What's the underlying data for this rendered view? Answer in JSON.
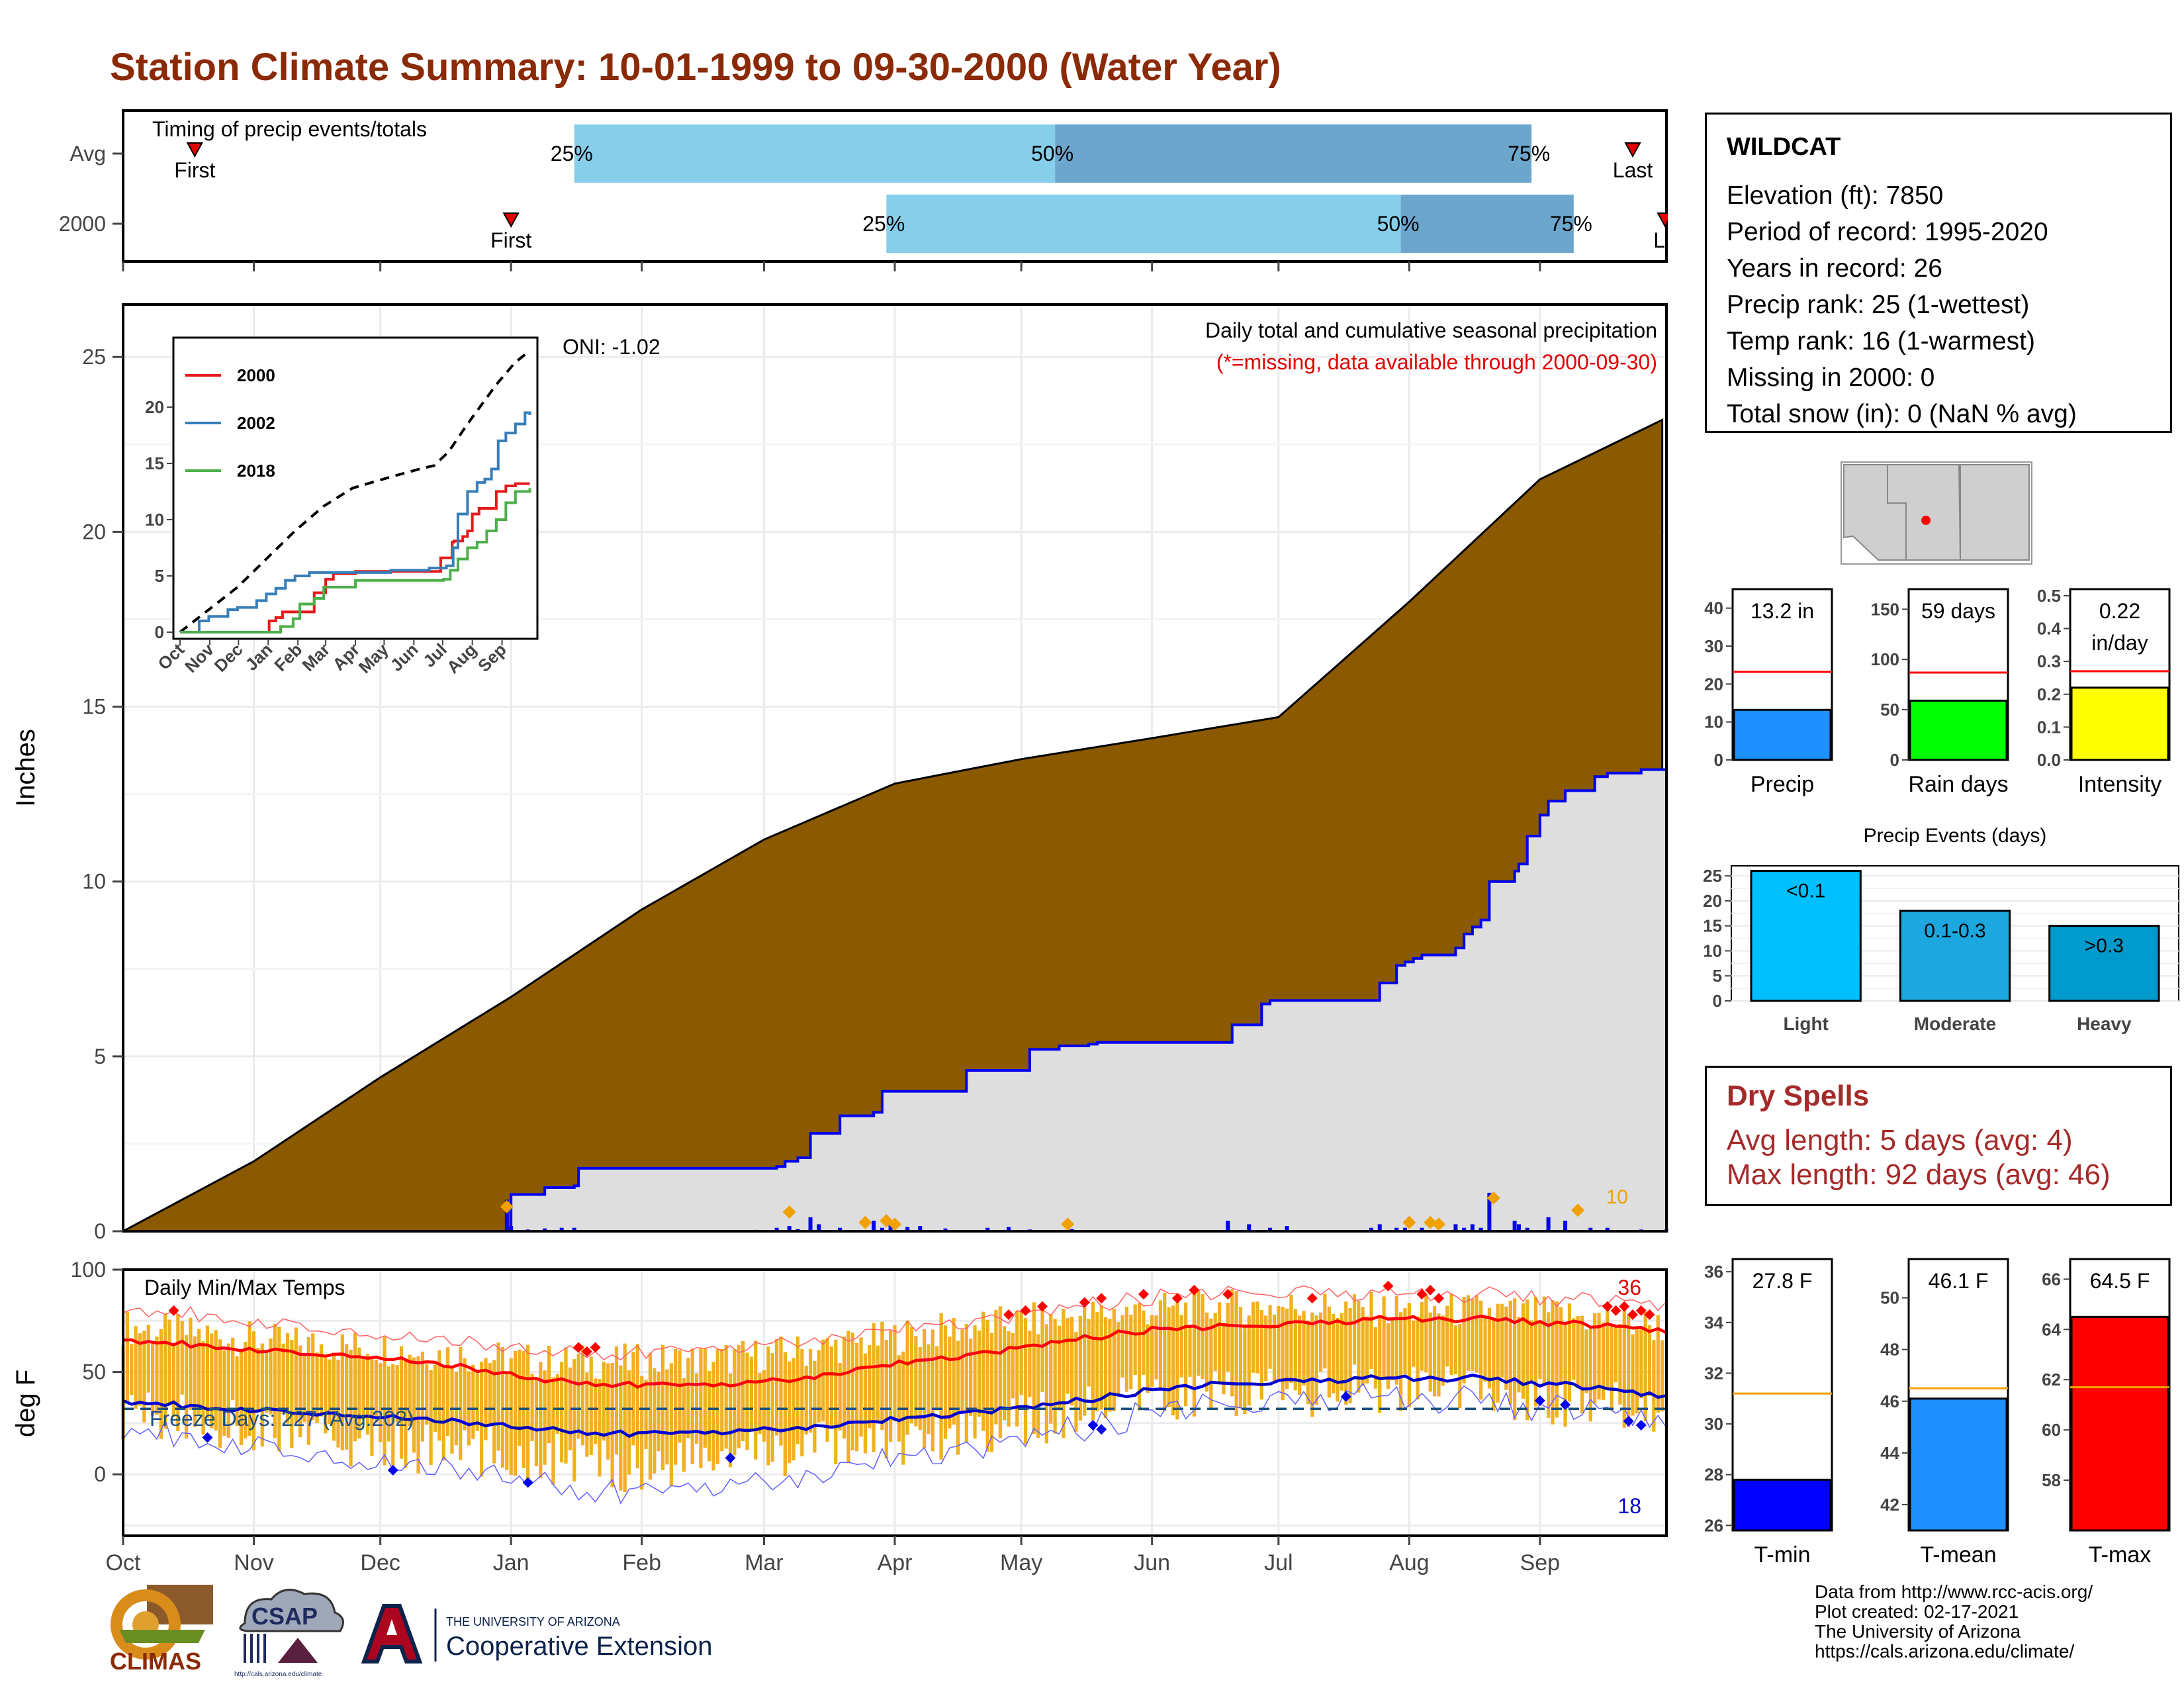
{
  "title": "Station Climate Summary: 10-01-1999 to 09-30-2000 (Water Year)",
  "colors": {
    "title": "#8B2A06",
    "accum": "#8B5A00",
    "current_fill": "#DEDEDE",
    "current_line": "#0000EE",
    "daily_bar": "#0000EE",
    "tmax": "#FF0000",
    "tmin": "#0000CC",
    "temp_bar": "#F0B020",
    "quartile_light": "#87CEEB",
    "quartile_dark": "#6CA6CD",
    "dry_spells": "#A52A2A"
  },
  "timing": {
    "label": "Timing of precip events/totals",
    "rows": [
      {
        "name": "Avg",
        "first_day": 17,
        "last_day": 358,
        "q25_day": 107,
        "q50_day": 221,
        "q75_day": 334,
        "q25_label": "25%",
        "q50_label": "50%",
        "q75_label": "75%",
        "first_label": "First",
        "last_label": "Last"
      },
      {
        "name": "2000",
        "first_day": 92,
        "last_day": 366,
        "q25_day": 181,
        "q50_day": 303,
        "q75_day": 344,
        "q25_label": "25%",
        "q50_label": "50%",
        "q75_label": "75%",
        "first_label": "First",
        "last_label": "La"
      }
    ]
  },
  "oni_label": "ONI: -1.02",
  "precip_header": "Daily total and cumulative seasonal precipitation",
  "precip_note": "(*=missing, data available through 2000-09-30)",
  "precip_corner_value": "10",
  "temp_header": "Daily Min/Max Temps",
  "freeze_label": "Freeze Days: 227 (Avg:202)",
  "temp_count_max": "36",
  "temp_count_min": "18",
  "month_labels": [
    "Oct",
    "Nov",
    "Dec",
    "Jan",
    "Feb",
    "Mar",
    "Apr",
    "May",
    "Jun",
    "Jul",
    "Aug",
    "Sep"
  ],
  "chart_data": [
    {
      "type": "area",
      "id": "cumulative-precip",
      "ylabel": "Inches",
      "ylim": [
        0,
        26.5
      ],
      "yticks": [
        0,
        5,
        10,
        15,
        20,
        25
      ],
      "x_unit": "day of water year",
      "avg_cumulative": {
        "x": [
          0,
          31,
          61,
          92,
          123,
          152,
          183,
          213,
          244,
          274,
          305,
          336,
          365
        ],
        "y": [
          0,
          2.0,
          4.4,
          6.7,
          9.2,
          11.2,
          12.8,
          13.5,
          14.1,
          14.7,
          18.0,
          21.5,
          23.2
        ]
      },
      "current_cumulative": {
        "x": [
          0,
          91,
          92,
          100,
          107,
          108,
          140,
          150,
          155,
          157,
          160,
          163,
          170,
          178,
          180,
          200,
          215,
          222,
          229,
          231,
          236,
          250,
          262,
          263,
          270,
          272,
          296,
          298,
          302,
          304,
          306,
          308,
          316,
          318,
          320,
          322,
          324,
          330,
          331,
          333,
          336,
          338,
          342,
          349,
          352,
          355,
          360,
          366
        ],
        "y": [
          0,
          0,
          1.05,
          1.25,
          1.3,
          1.8,
          1.8,
          1.8,
          1.85,
          2.0,
          2.1,
          2.8,
          3.3,
          3.4,
          4.0,
          4.6,
          5.2,
          5.3,
          5.35,
          5.4,
          5.4,
          5.4,
          5.4,
          5.9,
          6.5,
          6.6,
          6.6,
          7.1,
          7.6,
          7.7,
          7.8,
          7.9,
          8.1,
          8.5,
          8.7,
          8.9,
          10.0,
          10.3,
          10.5,
          11.3,
          11.9,
          12.3,
          12.6,
          13.0,
          13.1,
          13.1,
          13.2,
          13.2
        ]
      },
      "daily_bars": {
        "x": [
          91,
          92,
          96,
          100,
          104,
          107,
          150,
          155,
          158,
          160,
          163,
          165,
          170,
          178,
          180,
          182,
          186,
          189,
          195,
          205,
          210,
          215,
          225,
          262,
          267,
          272,
          276,
          296,
          298,
          302,
          304,
          308,
          316,
          318,
          320,
          322,
          324,
          330,
          331,
          333,
          338,
          342,
          348,
          352,
          360,
          366
        ],
        "y": [
          0.9,
          0.15,
          0.05,
          0.08,
          0.1,
          0.1,
          0.04,
          0.1,
          0.15,
          0.06,
          0.4,
          0.2,
          0.1,
          0.3,
          0.1,
          0.2,
          0.12,
          0.15,
          0.08,
          0.1,
          0.12,
          0.05,
          0.06,
          0.3,
          0.2,
          0.1,
          0.15,
          0.1,
          0.2,
          0.1,
          0.1,
          0.1,
          0.2,
          0.1,
          0.2,
          0.1,
          1.1,
          0.3,
          0.2,
          0.1,
          0.4,
          0.3,
          0.1,
          0.1,
          0.05,
          0.05
        ]
      },
      "highlight_markers": {
        "x": [
          91,
          158,
          176,
          181,
          183,
          224,
          305,
          310,
          312,
          325,
          345
        ],
        "y": [
          0.7,
          0.55,
          0.25,
          0.3,
          0.2,
          0.2,
          0.25,
          0.25,
          0.2,
          0.95,
          0.6
        ]
      }
    },
    {
      "type": "line",
      "id": "inset-cumulative",
      "series": [
        {
          "name": "2000",
          "x": [
            0,
            92,
            93,
            100,
            107,
            110,
            140,
            152,
            160,
            183,
            215,
            272,
            284,
            286,
            295,
            300,
            305,
            312,
            330,
            340,
            350,
            365
          ],
          "y": [
            0,
            0,
            1.0,
            1.3,
            1.8,
            1.8,
            3.5,
            4.7,
            5.2,
            5.4,
            5.4,
            6.6,
            8.0,
            8.1,
            8.5,
            9.0,
            10.5,
            11.0,
            12.5,
            13.0,
            13.2,
            13.2
          ]
        },
        {
          "name": "2002",
          "x": [
            0,
            20,
            30,
            50,
            60,
            80,
            90,
            100,
            110,
            120,
            135,
            155,
            183,
            220,
            260,
            278,
            285,
            290,
            300,
            310,
            318,
            325,
            332,
            340,
            350,
            360,
            365
          ],
          "y": [
            0,
            1.0,
            1.4,
            2.0,
            2.2,
            2.8,
            3.4,
            3.9,
            4.6,
            5.0,
            5.3,
            5.3,
            5.3,
            5.5,
            5.7,
            5.9,
            7.5,
            10.5,
            12.5,
            13.3,
            13.6,
            14.5,
            17.0,
            17.7,
            18.5,
            19.5,
            19.3
          ]
        },
        {
          "name": "2018",
          "x": [
            0,
            100,
            105,
            118,
            125,
            140,
            150,
            183,
            220,
            275,
            282,
            290,
            300,
            310,
            320,
            330,
            340,
            350,
            365
          ],
          "y": [
            0,
            0,
            0.5,
            1.2,
            2.5,
            3.0,
            4.0,
            4.6,
            4.6,
            4.7,
            5.5,
            6.5,
            7.5,
            8.0,
            9.0,
            10.0,
            11.5,
            12.5,
            12.8
          ]
        }
      ],
      "avg_dashed": {
        "x": [
          0,
          30,
          60,
          90,
          120,
          150,
          180,
          220,
          250,
          265,
          280,
          300,
          330,
          350,
          365
        ],
        "y": [
          0,
          2.0,
          4.0,
          6.5,
          9.0,
          11.2,
          12.8,
          13.8,
          14.5,
          14.8,
          16.0,
          18.5,
          22.0,
          24.0,
          25.0
        ]
      },
      "ylim": [
        0,
        25
      ],
      "yticks": [
        0,
        5,
        10,
        15,
        20
      ],
      "xticks": [
        "Oct",
        "Nov",
        "Dec",
        "Jan",
        "Feb",
        "Mar",
        "Apr",
        "May",
        "Jun",
        "Jul",
        "Aug",
        "Sep"
      ]
    },
    {
      "type": "line",
      "id": "daily-temps",
      "ylabel": "deg F",
      "ylim": [
        -30,
        100
      ],
      "yticks": [
        0,
        50,
        100
      ],
      "freeze_line": 32,
      "tmax_smooth": {
        "x": [
          0,
          20,
          40,
          60,
          80,
          100,
          120,
          140,
          160,
          180,
          200,
          220,
          240,
          260,
          280,
          300,
          320,
          340,
          366
        ],
        "y": [
          66,
          63,
          60,
          58,
          53,
          46,
          44,
          44,
          47,
          53,
          58,
          64,
          70,
          72,
          74,
          76,
          76,
          74,
          70
        ]
      },
      "tmin_smooth": {
        "x": [
          0,
          20,
          40,
          60,
          80,
          100,
          120,
          140,
          160,
          180,
          200,
          220,
          240,
          260,
          280,
          300,
          320,
          340,
          366
        ],
        "y": [
          36,
          33,
          31,
          29,
          26,
          22,
          20,
          21,
          23,
          26,
          30,
          34,
          40,
          44,
          46,
          47,
          47,
          44,
          38
        ]
      },
      "tmax_record": {
        "x": [
          0,
          20,
          40,
          60,
          80,
          100,
          120,
          140,
          160,
          180,
          200,
          220,
          240,
          260,
          280,
          300,
          320,
          340,
          366
        ],
        "y": [
          82,
          78,
          74,
          70,
          66,
          60,
          60,
          62,
          66,
          70,
          74,
          80,
          86,
          88,
          90,
          88,
          88,
          86,
          82
        ]
      },
      "tmin_record": {
        "x": [
          0,
          20,
          40,
          60,
          80,
          100,
          120,
          140,
          160,
          180,
          200,
          220,
          240,
          260,
          280,
          300,
          320,
          340,
          366
        ],
        "y": [
          24,
          18,
          14,
          8,
          4,
          -4,
          -8,
          -4,
          0,
          6,
          12,
          20,
          28,
          34,
          38,
          38,
          36,
          32,
          26
        ]
      },
      "bar_top": {
        "x": [
          0,
          20,
          40,
          60,
          80,
          100,
          120,
          140,
          160,
          180,
          200,
          220,
          240,
          260,
          280,
          300,
          320,
          340,
          366
        ],
        "y": [
          72,
          68,
          64,
          62,
          58,
          55,
          55,
          56,
          60,
          66,
          72,
          76,
          80,
          82,
          82,
          80,
          80,
          78,
          72
        ]
      },
      "bar_bottom": {
        "x": [
          0,
          20,
          40,
          60,
          80,
          100,
          120,
          140,
          160,
          180,
          200,
          220,
          240,
          260,
          280,
          300,
          320,
          340,
          366
        ],
        "y": [
          30,
          26,
          20,
          14,
          12,
          8,
          4,
          8,
          12,
          16,
          22,
          28,
          36,
          40,
          40,
          42,
          40,
          36,
          32
        ]
      },
      "tmax_markers": {
        "x": [
          12,
          108,
          110,
          112,
          210,
          214,
          218,
          228,
          232,
          242,
          250,
          254,
          262,
          282,
          300,
          308,
          310,
          312,
          352,
          354,
          356,
          358,
          360,
          362
        ],
        "y": [
          80,
          62,
          60,
          62,
          78,
          80,
          82,
          84,
          86,
          88,
          86,
          90,
          88,
          86,
          92,
          88,
          90,
          86,
          82,
          80,
          82,
          78,
          80,
          78
        ]
      },
      "tmin_markers": {
        "x": [
          20,
          64,
          96,
          144,
          230,
          232,
          290,
          336,
          342,
          357,
          360
        ],
        "y": [
          18,
          2,
          -4,
          8,
          24,
          22,
          38,
          36,
          34,
          26,
          24
        ]
      }
    },
    {
      "type": "bar",
      "id": "precip-total",
      "categories": [
        "Precip"
      ],
      "values": [
        13.2
      ],
      "avg": 23.2,
      "label": "13.2 in",
      "ylim": [
        0,
        45
      ],
      "yticks": [
        0,
        10,
        20,
        30,
        40
      ],
      "color": "#1E90FF"
    },
    {
      "type": "bar",
      "id": "rain-days",
      "categories": [
        "Rain days"
      ],
      "values": [
        59
      ],
      "avg": 87,
      "label": "59 days",
      "ylim": [
        0,
        170
      ],
      "yticks": [
        0,
        50,
        100,
        150
      ],
      "color": "#00FF00"
    },
    {
      "type": "bar",
      "id": "intensity",
      "categories": [
        "Intensity"
      ],
      "values": [
        0.22
      ],
      "avg": 0.27,
      "label": "0.22",
      "label2": "in/day",
      "ylim": [
        0,
        0.52
      ],
      "yticks": [
        0.0,
        0.1,
        0.2,
        0.3,
        0.4,
        0.5
      ],
      "ytick_labels": [
        "0.0",
        "0.1",
        "0.2",
        "0.3",
        "0.4",
        "0.5"
      ],
      "color": "#FFFF00"
    },
    {
      "type": "bar",
      "id": "precip-events",
      "title": "Precip Events (days)",
      "categories": [
        "Light",
        "Moderate",
        "Heavy"
      ],
      "values": [
        26,
        18,
        15
      ],
      "bar_labels": [
        "<0.1",
        "0.1-0.3",
        ">0.3"
      ],
      "ylim": [
        0,
        27
      ],
      "yticks": [
        0,
        5,
        10,
        15,
        20,
        25
      ],
      "colors": [
        "#00BFFF",
        "#1CA8DE",
        "#009ACD"
      ]
    },
    {
      "type": "bar",
      "id": "tmin-bar",
      "categories": [
        "T-min"
      ],
      "values": [
        27.8
      ],
      "avg": 31.2,
      "label": "27.8 F",
      "ylim": [
        25.8,
        36.5
      ],
      "yticks": [
        26,
        28,
        30,
        32,
        34,
        36
      ],
      "color": "#0000FF"
    },
    {
      "type": "bar",
      "id": "tmean-bar",
      "categories": [
        "T-mean"
      ],
      "values": [
        46.1
      ],
      "avg": 46.5,
      "label": "46.1 F",
      "ylim": [
        41.0,
        51.5
      ],
      "yticks": [
        42,
        44,
        46,
        48,
        50
      ],
      "color": "#1E90FF"
    },
    {
      "type": "bar",
      "id": "tmax-bar",
      "categories": [
        "T-max"
      ],
      "values": [
        64.5
      ],
      "avg": 61.7,
      "label": "64.5 F",
      "ylim": [
        56.0,
        66.8
      ],
      "yticks": [
        58,
        60,
        62,
        64,
        66
      ],
      "color": "#FF0000"
    }
  ],
  "station": {
    "name": "WILDCAT",
    "rows": [
      "Elevation (ft): 7850",
      "Period of record: 1995-2020",
      "Years in record: 26",
      "Precip rank: 25 (1-wettest)",
      "Temp rank: 16 (1-warmest)",
      "Missing in 2000: 0",
      "Total snow (in): 0 (NaN % avg)"
    ]
  },
  "dry_spells": {
    "title": "Dry Spells",
    "avg_length": "Avg length: 5 days (avg: 4)",
    "max_length": "Max length: 92 days (avg: 46)"
  },
  "credits": [
    "Data from http://www.rcc-acis.org/",
    "Plot created: 02-17-2021",
    "The University of Arizona",
    "https://cals.arizona.edu/climate/"
  ],
  "logos": {
    "climas": "CLIMAS",
    "csap": "CSAP",
    "csap_url": "http://cals.arizona.edu/climate",
    "ua_line1": "THE UNIVERSITY OF ARIZONA",
    "ua_line2": "Cooperative Extension"
  }
}
